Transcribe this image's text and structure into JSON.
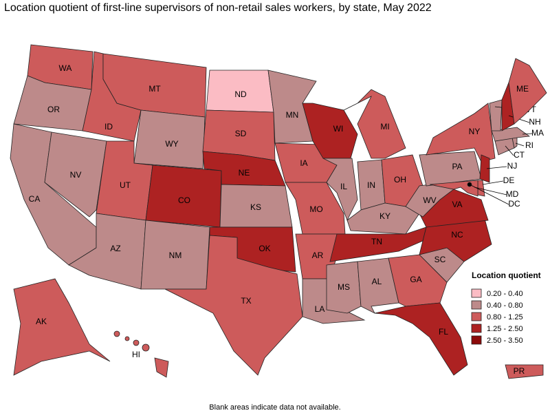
{
  "title": "Location quotient of first-line supervisors of non-retail sales workers, by state, May 2022",
  "legend": {
    "title": "Location quotient",
    "classes": [
      {
        "label": "0.20 - 0.40",
        "color": "#fbbcc4"
      },
      {
        "label": "0.40 - 0.80",
        "color": "#bd8a8a"
      },
      {
        "label": "0.80 - 1.25",
        "color": "#cd5b5b"
      },
      {
        "label": "1.25 - 2.50",
        "color": "#ad2222"
      },
      {
        "label": "2.50 - 3.50",
        "color": "#8c0a0a"
      }
    ]
  },
  "states": [
    {
      "abbr": "WA",
      "class": 2
    },
    {
      "abbr": "OR",
      "class": 1
    },
    {
      "abbr": "CA",
      "class": 1
    },
    {
      "abbr": "NV",
      "class": 1
    },
    {
      "abbr": "ID",
      "class": 2
    },
    {
      "abbr": "MT",
      "class": 2
    },
    {
      "abbr": "WY",
      "class": 1
    },
    {
      "abbr": "UT",
      "class": 2
    },
    {
      "abbr": "AZ",
      "class": 1
    },
    {
      "abbr": "CO",
      "class": 3
    },
    {
      "abbr": "NM",
      "class": 1
    },
    {
      "abbr": "ND",
      "class": 0
    },
    {
      "abbr": "SD",
      "class": 2
    },
    {
      "abbr": "NE",
      "class": 3
    },
    {
      "abbr": "KS",
      "class": 1
    },
    {
      "abbr": "OK",
      "class": 3
    },
    {
      "abbr": "TX",
      "class": 2
    },
    {
      "abbr": "MN",
      "class": 1
    },
    {
      "abbr": "IA",
      "class": 2
    },
    {
      "abbr": "MO",
      "class": 2
    },
    {
      "abbr": "AR",
      "class": 2
    },
    {
      "abbr": "LA",
      "class": 1
    },
    {
      "abbr": "WI",
      "class": 3
    },
    {
      "abbr": "IL",
      "class": 1
    },
    {
      "abbr": "MI",
      "class": 2
    },
    {
      "abbr": "IN",
      "class": 1
    },
    {
      "abbr": "OH",
      "class": 2
    },
    {
      "abbr": "KY",
      "class": 1
    },
    {
      "abbr": "TN",
      "class": 3
    },
    {
      "abbr": "MS",
      "class": 1
    },
    {
      "abbr": "AL",
      "class": 1
    },
    {
      "abbr": "GA",
      "class": 2
    },
    {
      "abbr": "FL",
      "class": 3
    },
    {
      "abbr": "SC",
      "class": 1
    },
    {
      "abbr": "NC",
      "class": 3
    },
    {
      "abbr": "VA",
      "class": 3
    },
    {
      "abbr": "WV",
      "class": 1
    },
    {
      "abbr": "PA",
      "class": 1
    },
    {
      "abbr": "NY",
      "class": 2
    },
    {
      "abbr": "NJ",
      "class": 3
    },
    {
      "abbr": "DE",
      "class": 2
    },
    {
      "abbr": "MD",
      "class": 2
    },
    {
      "abbr": "DC",
      "class": 4
    },
    {
      "abbr": "CT",
      "class": 1
    },
    {
      "abbr": "RI",
      "class": 1
    },
    {
      "abbr": "MA",
      "class": 1
    },
    {
      "abbr": "VT",
      "class": 1
    },
    {
      "abbr": "NH",
      "class": 3
    },
    {
      "abbr": "ME",
      "class": 2
    },
    {
      "abbr": "AK",
      "class": 2
    },
    {
      "abbr": "HI",
      "class": 2
    },
    {
      "abbr": "PR",
      "class": 2
    }
  ],
  "footnote": "Blank areas indicate data not available."
}
